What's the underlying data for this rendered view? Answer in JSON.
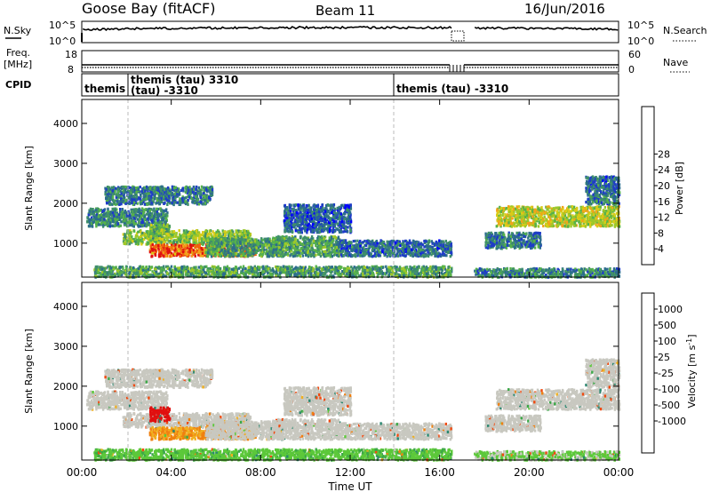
{
  "header": {
    "station": "Goose Bay (fitACF)",
    "beam": "Beam 11",
    "date": "16/Jun/2016"
  },
  "strips": {
    "nsky_label": "N.Sky",
    "nsearch_label": "N.Search",
    "left_ticks": [
      "10^5",
      "10^0"
    ],
    "right_ticks": [
      "10^5",
      "10^0"
    ],
    "freq_label": "Freq.",
    "freq_unit": "[MHz]",
    "freq_ticks": [
      "18",
      "8"
    ],
    "nave_label": "Nave",
    "nave_ticks": [
      "60",
      "0"
    ],
    "cpid_label": "CPID",
    "cpid_segments": [
      {
        "name": "themis",
        "start_hr": 0.0,
        "end_hr": 1.75
      },
      {
        "name": "themis (tau) 3310",
        "start_hr": 1.75,
        "end_hr": 14.0
      },
      {
        "name": "themis (tau) -3310",
        "start_hr": 14.0,
        "end_hr": 24.0
      }
    ],
    "cpid_sub_label": "(tau) -3310"
  },
  "axes": {
    "ylabel": "Slant Range [km]",
    "xlabel": "Time UT",
    "y_ticks": [
      "1000",
      "2000",
      "3000",
      "4000"
    ],
    "y_tick_values": [
      1000,
      2000,
      3000,
      4000
    ],
    "ylim": [
      150,
      4600
    ],
    "x_ticks": [
      "00:00",
      "04:00",
      "08:00",
      "12:00",
      "16:00",
      "20:00",
      "00:00"
    ],
    "x_tick_values": [
      0,
      4,
      8,
      12,
      16,
      20,
      24
    ],
    "xlim": [
      0,
      24
    ]
  },
  "power_scale": {
    "label": "Power [dB]",
    "ticks": [
      "4",
      "8",
      "12",
      "16",
      "20",
      "24",
      "28"
    ],
    "colors": [
      "#0000ff",
      "#1e3cc8",
      "#2c6d8c",
      "#3f8f6a",
      "#56b24a",
      "#9cc82a",
      "#d8cc18",
      "#f3a21a",
      "#f06410",
      "#e01010"
    ]
  },
  "velocity_scale": {
    "label": "Velocity [m s",
    "label_sup": "-1",
    "label_end": "]",
    "ticks": [
      "1000",
      "500",
      "100",
      "25",
      "-25",
      "-100",
      "-500",
      "-1000"
    ],
    "colors": [
      "#1a2ec8",
      "#2060a0",
      "#2a8870",
      "#3ca848",
      "#5cc83a",
      "#c8c8c0",
      "#f0b020",
      "#f08010",
      "#f04a10",
      "#e01010"
    ]
  },
  "chart_data": {
    "type": "heatmap",
    "title": "Goose Bay (fitACF)  Beam 11  16/Jun/2016",
    "xlabel": "Time UT",
    "ylabel": "Slant Range [km]",
    "x_units": "hours UT",
    "xlim": [
      0,
      24
    ],
    "ylim": [
      150,
      4600
    ],
    "grid": false,
    "dashed_markers_hr": [
      1.75,
      14.0
    ],
    "data_gap_hr": [
      16.6,
      17.5
    ],
    "scatter_regions": [
      {
        "t_start": 0.2,
        "t_end": 3.8,
        "r_start": 1450,
        "r_end": 1900,
        "power_db": 10,
        "velocity": 0
      },
      {
        "t_start": 1.0,
        "t_end": 5.8,
        "r_start": 2000,
        "r_end": 2450,
        "power_db": 9,
        "velocity": 0
      },
      {
        "t_start": 1.8,
        "t_end": 7.5,
        "r_start": 1000,
        "r_end": 1350,
        "power_db": 16,
        "velocity": 0
      },
      {
        "t_start": 3.0,
        "t_end": 7.8,
        "r_start": 700,
        "r_end": 1000,
        "power_db": 26,
        "velocity": -50
      },
      {
        "t_start": 3.0,
        "t_end": 3.9,
        "r_start": 1150,
        "r_end": 1500,
        "power_db": 14,
        "velocity": -600
      },
      {
        "t_start": 5.5,
        "t_end": 9.0,
        "r_start": 700,
        "r_end": 1150,
        "power_db": 12,
        "velocity": 0
      },
      {
        "t_start": 8.5,
        "t_end": 11.5,
        "r_start": 700,
        "r_end": 1200,
        "power_db": 12,
        "velocity": 0
      },
      {
        "t_start": 9.0,
        "t_end": 12.0,
        "r_start": 1300,
        "r_end": 2000,
        "power_db": 7,
        "velocity": 0
      },
      {
        "t_start": 11.5,
        "t_end": 16.5,
        "r_start": 700,
        "r_end": 1100,
        "power_db": 8,
        "velocity": 0
      },
      {
        "t_start": 0.5,
        "t_end": 16.5,
        "r_start": 180,
        "r_end": 450,
        "power_db": 12,
        "velocity": 40
      },
      {
        "t_start": 17.5,
        "t_end": 24.0,
        "r_start": 180,
        "r_end": 400,
        "power_db": 10,
        "velocity": 30
      },
      {
        "t_start": 18.5,
        "t_end": 24.0,
        "r_start": 1450,
        "r_end": 1950,
        "power_db": 18,
        "velocity": 0
      },
      {
        "t_start": 22.5,
        "t_end": 24.0,
        "r_start": 2000,
        "r_end": 2700,
        "power_db": 8,
        "velocity": 0
      },
      {
        "t_start": 18.0,
        "t_end": 20.5,
        "r_start": 900,
        "r_end": 1300,
        "power_db": 9,
        "velocity": 0
      }
    ]
  }
}
